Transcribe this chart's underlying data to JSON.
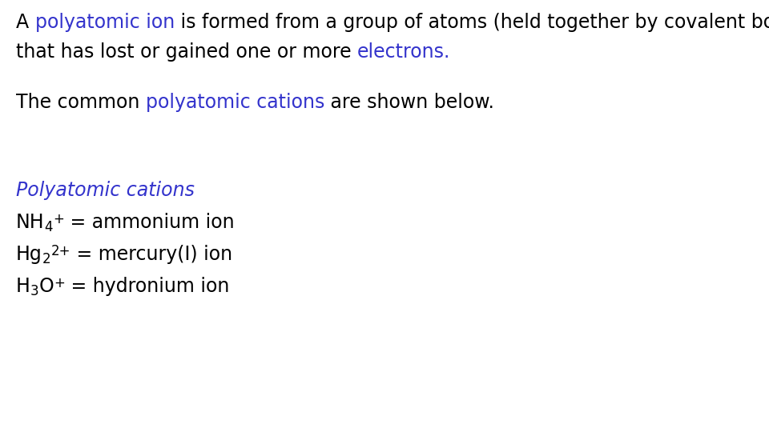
{
  "background_color": "#ffffff",
  "blue_color": "#3333cc",
  "black_color": "#000000",
  "font_size": 17,
  "font_size_sub": 12,
  "font_family": "DejaVu Sans"
}
